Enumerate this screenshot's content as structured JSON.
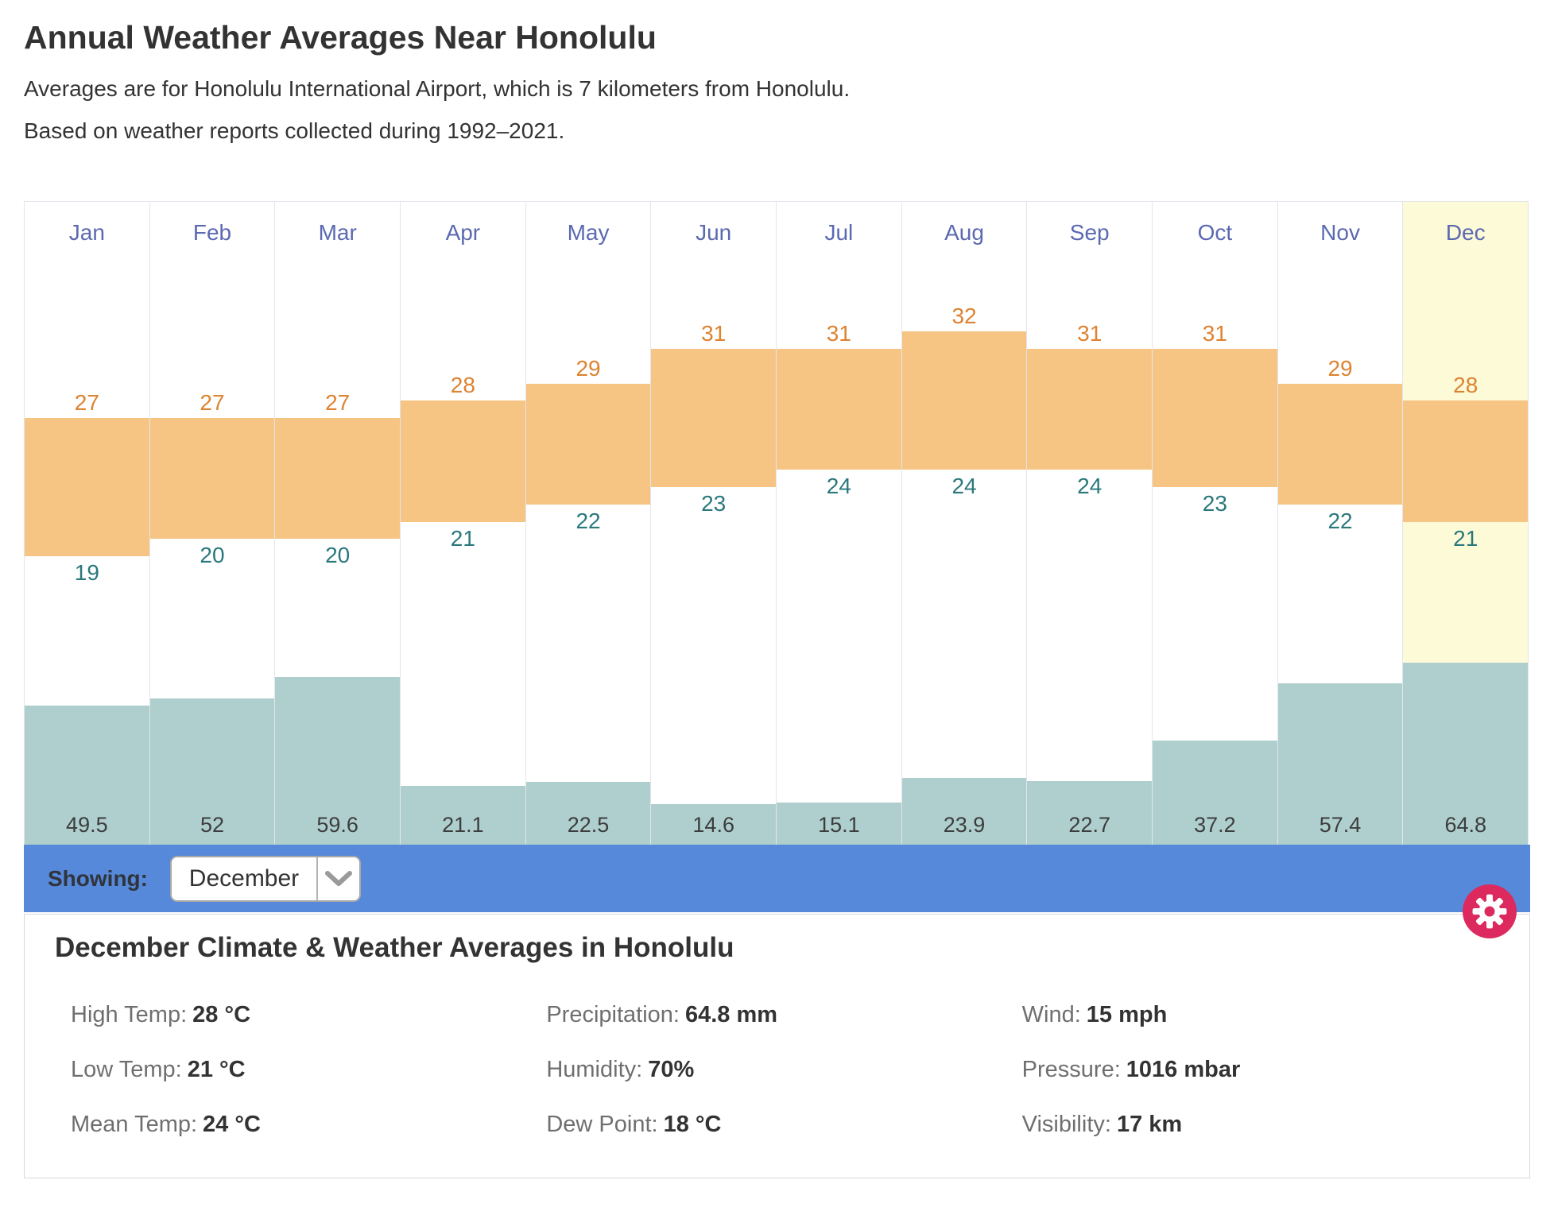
{
  "page": {
    "title": "Annual Weather Averages Near Honolulu",
    "subtitle1": "Averages are for Honolulu International Airport, which is 7 kilometers from Honolulu.",
    "subtitle2": "Based on weather reports collected during 1992–2021."
  },
  "chart_data": {
    "type": "bar",
    "title": "Annual Weather Averages Near Honolulu",
    "categories": [
      "Jan",
      "Feb",
      "Mar",
      "Apr",
      "May",
      "Jun",
      "Jul",
      "Aug",
      "Sep",
      "Oct",
      "Nov",
      "Dec"
    ],
    "series": [
      {
        "name": "High Temp (°C)",
        "values": [
          27,
          27,
          27,
          28,
          29,
          31,
          31,
          32,
          31,
          31,
          29,
          28
        ]
      },
      {
        "name": "Low Temp (°C)",
        "values": [
          19,
          20,
          20,
          21,
          22,
          23,
          24,
          24,
          24,
          23,
          22,
          21
        ]
      },
      {
        "name": "Precipitation (mm)",
        "values": [
          49.5,
          52,
          59.6,
          21.1,
          22.5,
          14.6,
          15.1,
          23.9,
          22.7,
          37.2,
          57.4,
          64.8
        ]
      }
    ],
    "highlighted_month": "Dec",
    "temp_axis_unit": "°C",
    "precip_axis_unit": "mm",
    "legend_position": "none",
    "grid": false,
    "colors": {
      "temp_bar": "#f6c584",
      "precip_bar": "#aecfce",
      "month_label": "#5b69b1",
      "high_value": "#dd8331",
      "low_value": "#2a787c",
      "highlight_column": "#fdfad8",
      "showing_bar": "#5689da",
      "gear_button": "#dc2a5e"
    }
  },
  "controls": {
    "showing_label": "Showing:",
    "dropdown_value": "December"
  },
  "panel": {
    "heading": "December Climate & Weather Averages in Honolulu",
    "stats_columns": [
      [
        {
          "label": "High Temp:",
          "value": "28 °C"
        },
        {
          "label": "Low Temp:",
          "value": "21 °C"
        },
        {
          "label": "Mean Temp:",
          "value": "24 °C"
        }
      ],
      [
        {
          "label": "Precipitation:",
          "value": "64.8 mm"
        },
        {
          "label": "Humidity:",
          "value": "70%"
        },
        {
          "label": "Dew Point:",
          "value": "18 °C"
        }
      ],
      [
        {
          "label": "Wind:",
          "value": "15 mph"
        },
        {
          "label": "Pressure:",
          "value": "1016 mbar"
        },
        {
          "label": "Visibility:",
          "value": "17 km"
        }
      ]
    ]
  }
}
